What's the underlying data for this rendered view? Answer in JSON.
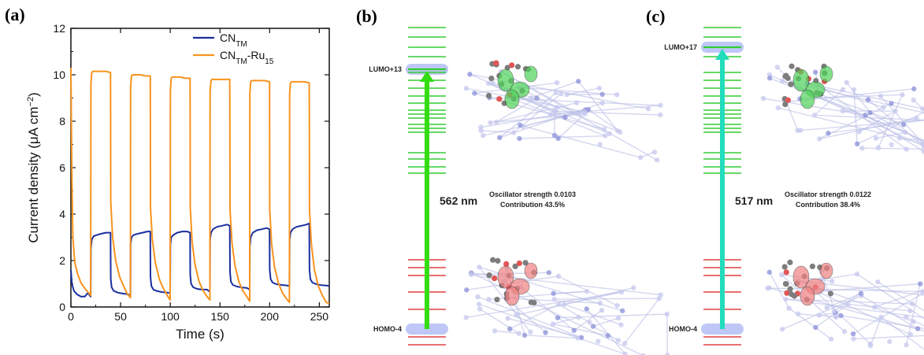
{
  "panels": {
    "a": "(a)",
    "b": "(b)",
    "c": "(c)"
  },
  "chart_data": [
    {
      "type": "line",
      "xlabel": "Time (s)",
      "ylabel": "Current density (μA cm⁻²)",
      "ylabel_parts": {
        "main": "Current density (μA cm",
        "sup": "−2",
        "end": ")"
      },
      "xlim": [
        0,
        260
      ],
      "ylim": [
        0,
        12
      ],
      "xticks": [
        0,
        50,
        100,
        150,
        200,
        250
      ],
      "yticks": [
        0,
        2,
        4,
        6,
        8,
        10,
        12
      ],
      "legend_position": "top-right",
      "series": [
        {
          "name": "CN_TM",
          "name_parts": {
            "base": "CN",
            "sub": "TM",
            "rest": "",
            "rest_sub": ""
          },
          "color": "#1a2fa0",
          "x": [
            0,
            1,
            3,
            6,
            10,
            14,
            17,
            19.9,
            20.1,
            21,
            23,
            26,
            30,
            35,
            39.9,
            40.1,
            41,
            43,
            47,
            52,
            57,
            59.9,
            60.1,
            61,
            63,
            67,
            72,
            77,
            79.9,
            80.1,
            81,
            83,
            87,
            92,
            97,
            99.9,
            100.1,
            101,
            103,
            107,
            112,
            117,
            119.9,
            120.1,
            121,
            123,
            127,
            132,
            137,
            139.9,
            140.1,
            141,
            143,
            147,
            152,
            157,
            159.9,
            160.1,
            161,
            163,
            167,
            172,
            177,
            179.9,
            180.1,
            181,
            183,
            187,
            192,
            197,
            199.9,
            200.1,
            201,
            203,
            207,
            212,
            217,
            219.9,
            220.1,
            221,
            223,
            227,
            232,
            237,
            239.9,
            240.1,
            241,
            243,
            247,
            252,
            258,
            260
          ],
          "y": [
            1.6,
            1.0,
            0.7,
            0.55,
            0.45,
            0.45,
            0.6,
            0.45,
            2.5,
            2.9,
            3.05,
            3.1,
            3.15,
            3.2,
            3.2,
            1.2,
            0.85,
            0.7,
            0.62,
            0.58,
            0.55,
            0.5,
            2.7,
            3.0,
            3.1,
            3.15,
            3.2,
            3.25,
            3.25,
            1.3,
            0.9,
            0.75,
            0.68,
            0.64,
            0.62,
            0.6,
            2.7,
            3.0,
            3.1,
            3.2,
            3.25,
            3.25,
            3.2,
            1.4,
            1.0,
            0.85,
            0.78,
            0.75,
            0.75,
            0.65,
            2.9,
            3.2,
            3.35,
            3.45,
            3.5,
            3.55,
            3.5,
            1.5,
            1.1,
            0.95,
            0.88,
            0.84,
            0.82,
            0.75,
            2.6,
            3.0,
            3.2,
            3.3,
            3.35,
            3.4,
            3.35,
            1.6,
            1.2,
            1.05,
            0.98,
            0.95,
            0.93,
            0.9,
            2.9,
            3.2,
            3.35,
            3.45,
            3.5,
            3.55,
            3.6,
            1.6,
            1.2,
            1.05,
            0.98,
            0.94,
            0.92,
            0.9
          ]
        },
        {
          "name": "CN_TM-Ru15",
          "name_parts": {
            "base": "CN",
            "sub": "TM",
            "rest": "-Ru",
            "rest_sub": "15"
          },
          "color": "#f7931e",
          "x": [
            0,
            0.5,
            1,
            2,
            4,
            7,
            10,
            14,
            17,
            19.9,
            20.1,
            21,
            22,
            25,
            30,
            35,
            39.9,
            40.1,
            42,
            45,
            49,
            53,
            57,
            59.9,
            60.1,
            61,
            62,
            65,
            70,
            75,
            79.9,
            80.1,
            82,
            85,
            89,
            93,
            97,
            99.9,
            100.1,
            101,
            102,
            105,
            110,
            115,
            119.9,
            120.1,
            122,
            125,
            129,
            133,
            137,
            139.9,
            140.1,
            141,
            142,
            145,
            150,
            155,
            159.9,
            160.1,
            162,
            165,
            169,
            173,
            177,
            179.9,
            180.1,
            181,
            182,
            185,
            190,
            195,
            199.9,
            200.1,
            202,
            205,
            209,
            213,
            217,
            219.9,
            220.1,
            221,
            222,
            225,
            230,
            235,
            239.9,
            240.1,
            242,
            245,
            249,
            253,
            257,
            260
          ],
          "y": [
            10.3,
            8.0,
            5.5,
            3.0,
            1.9,
            1.4,
            1.05,
            0.8,
            0.65,
            0.5,
            9.6,
            10.1,
            10.15,
            10.15,
            10.15,
            10.15,
            10.1,
            4.5,
            3.0,
            2.0,
            1.3,
            0.9,
            0.55,
            0.4,
            9.5,
            9.95,
            10.0,
            10.0,
            10.0,
            9.95,
            9.95,
            4.3,
            2.9,
            1.9,
            1.2,
            0.8,
            0.5,
            0.3,
            9.3,
            9.85,
            9.9,
            9.9,
            9.9,
            9.85,
            9.85,
            4.3,
            2.8,
            1.8,
            1.1,
            0.7,
            0.45,
            0.3,
            9.3,
            9.75,
            9.8,
            9.8,
            9.8,
            9.8,
            9.8,
            4.2,
            2.8,
            1.8,
            1.1,
            0.7,
            0.45,
            0.25,
            9.2,
            9.7,
            9.75,
            9.75,
            9.75,
            9.75,
            9.7,
            4.2,
            2.7,
            1.7,
            1.0,
            0.6,
            0.35,
            0.2,
            9.2,
            9.65,
            9.7,
            9.7,
            9.7,
            9.7,
            9.65,
            4.2,
            2.7,
            1.6,
            0.9,
            0.5,
            0.2,
            0.15
          ]
        }
      ]
    }
  ],
  "energy_diagrams": [
    {
      "id": "b",
      "lumo_label": "LUMO+13",
      "homo_label": "HOMO-4",
      "wavelength": "562 nm",
      "oscillator": "Oscillator strength 0.0103",
      "contribution": "Contribution 43.5%",
      "arrow_color": "#33dd11",
      "green_levels": 23,
      "red_levels": 7
    },
    {
      "id": "c",
      "lumo_label": "LUMO+17",
      "homo_label": "HOMO-4",
      "wavelength": "517 nm",
      "oscillator": "Oscillator strength 0.0122",
      "contribution": "Contribution 38.4%",
      "arrow_color": "#22ddbb",
      "green_levels": 23,
      "red_levels": 7
    }
  ],
  "colors": {
    "level_green": "#33cc33",
    "level_red": "#e04040",
    "highlight_blue": "#8899ee"
  }
}
